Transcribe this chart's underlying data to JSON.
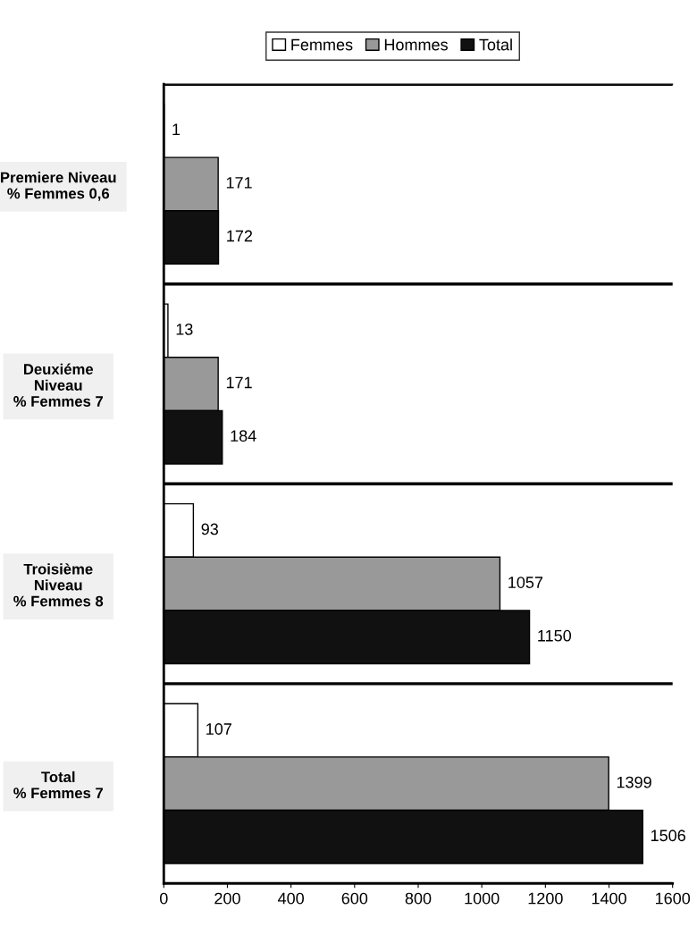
{
  "chart_data": {
    "type": "bar",
    "orientation": "horizontal",
    "categories": [
      "Premiere Niveau\n% Femmes 0,6",
      "Deuxiéme\nNiveau\n% Femmes 7",
      "Troisième\nNiveau\n% Femmes 8",
      "Total\n% Femmes 7"
    ],
    "series": [
      {
        "name": "Femmes",
        "color": "#ffffff",
        "values": [
          1,
          13,
          93,
          107
        ]
      },
      {
        "name": "Hommes",
        "color": "#999999",
        "values": [
          171,
          171,
          1057,
          1399
        ]
      },
      {
        "name": "Total",
        "color": "#111111",
        "values": [
          172,
          184,
          1150,
          1506
        ]
      }
    ],
    "xlim": [
      0,
      1600
    ],
    "xticks": [
      0,
      200,
      400,
      600,
      800,
      1000,
      1200,
      1400,
      1600
    ],
    "data_labels": true,
    "legend": "top",
    "grid": "y"
  }
}
